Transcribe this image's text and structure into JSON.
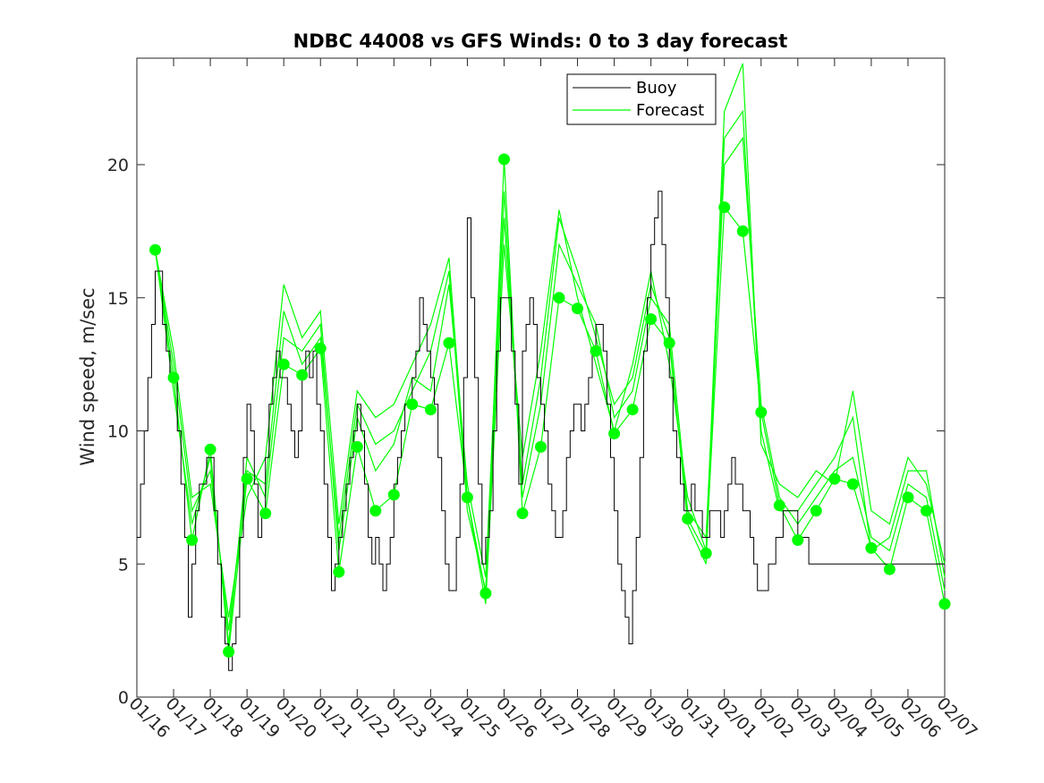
{
  "colors": {
    "buoy": "#000000",
    "forecast": "#00ff00",
    "background": "#ffffff",
    "axis": "#262626"
  },
  "chart_data": {
    "type": "line",
    "title": "NDBC 44008 vs GFS Winds: 0 to 3 day forecast",
    "xlabel": "",
    "ylabel": "Wind speed, m/sec",
    "xlim": [
      0,
      22
    ],
    "ylim": [
      0,
      24
    ],
    "x_tick_labels": [
      "01/16",
      "01/17",
      "01/18",
      "01/19",
      "01/20",
      "01/21",
      "01/22",
      "01/23",
      "01/24",
      "01/25",
      "01/26",
      "01/27",
      "01/28",
      "01/29",
      "01/30",
      "01/31",
      "02/01",
      "02/02",
      "02/03",
      "02/04",
      "02/05",
      "02/06",
      "02/07"
    ],
    "y_ticks": [
      0,
      5,
      10,
      15,
      20
    ],
    "legend": {
      "position": "top-right",
      "entries": [
        "Buoy",
        "Forecast"
      ]
    },
    "buoy": {
      "name": "Buoy",
      "x": [
        0,
        0.1,
        0.2,
        0.3,
        0.4,
        0.5,
        0.6,
        0.7,
        0.8,
        0.9,
        1.0,
        1.1,
        1.2,
        1.3,
        1.4,
        1.5,
        1.6,
        1.7,
        1.8,
        1.9,
        2.0,
        2.1,
        2.2,
        2.3,
        2.4,
        2.5,
        2.6,
        2.7,
        2.8,
        2.9,
        3.0,
        3.1,
        3.2,
        3.3,
        3.4,
        3.5,
        3.6,
        3.7,
        3.8,
        3.9,
        4.0,
        4.1,
        4.2,
        4.3,
        4.4,
        4.5,
        4.6,
        4.7,
        4.8,
        4.9,
        5.0,
        5.1,
        5.2,
        5.3,
        5.4,
        5.5,
        5.6,
        5.7,
        5.8,
        5.9,
        6.0,
        6.1,
        6.2,
        6.3,
        6.4,
        6.5,
        6.6,
        6.7,
        6.8,
        6.9,
        7.0,
        7.1,
        7.2,
        7.3,
        7.4,
        7.5,
        7.6,
        7.7,
        7.8,
        7.9,
        8.0,
        8.1,
        8.2,
        8.3,
        8.4,
        8.5,
        8.6,
        8.7,
        8.8,
        8.9,
        9.0,
        9.1,
        9.2,
        9.3,
        9.4,
        9.5,
        9.6,
        9.7,
        9.8,
        9.9,
        10.0,
        10.1,
        10.2,
        10.3,
        10.4,
        10.5,
        10.6,
        10.7,
        10.8,
        10.9,
        11.0,
        11.1,
        11.2,
        11.3,
        11.4,
        11.5,
        11.6,
        11.7,
        11.8,
        11.9,
        12.0,
        12.1,
        12.2,
        12.3,
        12.4,
        12.5,
        12.6,
        12.7,
        12.8,
        12.9,
        13.0,
        13.1,
        13.2,
        13.3,
        13.4,
        13.5,
        13.6,
        13.7,
        13.8,
        13.9,
        14.0,
        14.1,
        14.2,
        14.3,
        14.4,
        14.5,
        14.6,
        14.7,
        14.8,
        14.9,
        15.0,
        15.1,
        15.2,
        15.3,
        15.4,
        15.5,
        15.6,
        15.7,
        15.8,
        15.9,
        16.0,
        16.1,
        16.2,
        16.3,
        16.4,
        16.5,
        16.6,
        16.7,
        16.8,
        16.9,
        17.0,
        17.1,
        17.2,
        17.3,
        17.4,
        17.5,
        17.6,
        17.7,
        17.8,
        17.9,
        18.0,
        18.1,
        18.2,
        18.3,
        18.4,
        18.5,
        18.6,
        18.7,
        18.8,
        18.9,
        19.0,
        19.1,
        19.2,
        19.3,
        19.4,
        19.5,
        19.6,
        19.7,
        19.8,
        19.9,
        20.0,
        20.1,
        20.2,
        20.3,
        20.4,
        20.5,
        20.6,
        20.7,
        20.8,
        20.9,
        21.0,
        21.1,
        21.2,
        21.3,
        21.4,
        21.5,
        21.6,
        21.7,
        21.8,
        21.9,
        22.0
      ],
      "y": [
        6,
        8,
        10,
        12,
        14,
        16,
        16,
        14,
        13,
        12,
        12,
        10,
        8,
        6,
        3,
        5,
        7,
        8,
        8,
        9,
        9,
        7,
        5,
        3,
        2,
        1,
        2,
        3,
        6,
        9,
        11,
        10,
        8,
        6,
        7,
        9,
        11,
        12,
        13,
        12,
        12,
        11,
        10,
        9,
        10,
        12,
        13,
        12,
        13,
        11,
        10,
        8,
        6,
        4,
        5,
        6,
        7,
        8,
        9,
        10,
        11,
        10,
        8,
        6,
        5,
        6,
        5,
        4,
        5,
        6,
        8,
        9,
        10,
        11,
        11,
        12,
        13,
        15,
        14,
        13,
        12,
        11,
        9,
        7,
        5,
        4,
        4,
        6,
        8,
        12,
        18,
        15,
        12,
        8,
        5,
        6,
        7,
        10,
        13,
        15,
        15,
        15,
        13,
        11,
        8,
        13,
        14,
        15,
        14,
        12,
        11,
        10,
        8,
        7,
        6,
        6,
        7,
        9,
        10,
        11,
        11,
        10,
        11,
        12,
        13,
        14,
        14,
        13,
        11,
        9,
        7,
        5,
        4,
        3,
        2,
        4,
        6,
        9,
        13,
        15,
        17,
        18,
        19,
        17,
        15,
        12,
        10,
        9,
        8,
        7,
        7,
        8,
        7,
        7,
        6,
        6,
        7,
        7,
        7,
        6,
        7,
        8,
        9,
        8,
        8,
        7,
        7,
        6,
        5,
        4,
        4,
        4,
        5,
        5,
        6,
        6,
        7,
        7,
        7,
        7,
        6,
        6,
        6,
        5,
        5,
        5,
        5,
        5,
        5,
        5,
        5,
        5,
        5,
        5,
        5,
        5,
        5,
        5,
        5,
        5,
        5,
        5,
        5,
        5,
        5,
        5,
        5,
        5,
        5,
        5,
        5,
        5,
        5,
        5,
        5,
        5,
        5,
        5,
        5,
        5,
        5
      ]
    },
    "forecast_series": [
      {
        "name": "Forecast",
        "x": [
          0.5,
          1.0,
          1.5,
          2.0,
          2.5,
          3.0,
          3.5,
          4.0,
          4.5,
          5.0,
          5.5,
          6.0,
          6.5,
          7.0,
          7.5,
          8.0,
          8.5,
          9.0,
          9.5,
          10.0,
          10.5,
          11.0,
          11.5,
          12.0,
          12.5,
          13.0,
          13.5,
          14.0,
          14.5,
          15.0,
          15.5,
          16.0,
          16.5,
          17.0,
          17.5,
          18.0,
          18.5,
          19.0,
          19.5,
          20.0,
          20.5,
          21.0,
          21.5,
          22.0
        ],
        "y": [
          16.8,
          12.0,
          5.9,
          9.3,
          1.7,
          8.2,
          6.9,
          12.5,
          12.1,
          13.1,
          4.7,
          9.4,
          7.0,
          7.6,
          11.0,
          10.8,
          13.3,
          7.5,
          3.9,
          20.2,
          6.9,
          9.4,
          15.0,
          14.6,
          13.0,
          9.9,
          10.8,
          14.2,
          13.3,
          6.7,
          5.4,
          18.4,
          17.5,
          10.7,
          7.2,
          5.9,
          7.0,
          8.2,
          8.0,
          5.6,
          4.8,
          7.5,
          7.0,
          3.5
        ]
      },
      {
        "name": "Forecast",
        "x": [
          0.5,
          1.0,
          1.5,
          2.0,
          2.5,
          3.0,
          3.5,
          4.0,
          4.5,
          5.0,
          5.5,
          6.0,
          6.5,
          7.0,
          7.5,
          8.0,
          8.5,
          9.0,
          9.5,
          10.0,
          10.5,
          11.0,
          11.5,
          12.0,
          12.5,
          13.0,
          13.5,
          14.0,
          14.5,
          15.0,
          15.5,
          16.0,
          16.5,
          17.0,
          17.5,
          18.0,
          18.5,
          19.0,
          19.5,
          20.0,
          20.5,
          21.0,
          21.5,
          22.0
        ],
        "y": [
          16.8,
          11.5,
          6.5,
          9.0,
          2.0,
          9.0,
          7.5,
          13.5,
          13.0,
          14.0,
          5.5,
          10.5,
          8.5,
          9.5,
          12.0,
          11.5,
          15.5,
          8.0,
          4.5,
          19.0,
          7.5,
          11.0,
          17.0,
          15.5,
          14.0,
          10.5,
          11.5,
          15.0,
          14.0,
          7.0,
          6.0,
          20.0,
          21.0,
          11.0,
          7.5,
          6.5,
          7.5,
          8.5,
          9.0,
          6.0,
          5.5,
          8.0,
          7.5,
          4.0
        ]
      },
      {
        "name": "Forecast",
        "x": [
          0.5,
          1.0,
          1.5,
          2.0,
          2.5,
          3.0,
          3.5,
          4.0,
          4.5,
          5.0,
          5.5,
          6.0,
          6.5,
          7.0,
          7.5,
          8.0,
          8.5,
          9.0,
          9.5,
          10.0,
          10.5,
          11.0,
          11.5,
          12.0,
          12.5,
          13.0,
          13.5,
          14.0,
          14.5,
          15.0,
          15.5,
          16.0,
          16.5,
          17.0,
          17.5,
          18.0,
          18.5,
          19.0,
          19.5,
          20.0,
          20.5,
          21.0,
          21.5,
          22.0
        ],
        "y": [
          16.8,
          12.5,
          7.0,
          8.5,
          2.5,
          8.5,
          8.0,
          14.5,
          12.5,
          13.5,
          6.0,
          11.0,
          9.5,
          10.0,
          11.5,
          13.0,
          16.0,
          7.0,
          4.0,
          18.0,
          8.0,
          12.0,
          18.0,
          16.0,
          13.5,
          11.0,
          12.0,
          15.5,
          13.5,
          6.5,
          5.0,
          21.0,
          22.0,
          10.0,
          7.0,
          7.0,
          8.0,
          9.0,
          10.5,
          5.5,
          6.0,
          8.5,
          8.5,
          4.5
        ]
      },
      {
        "name": "Forecast",
        "x": [
          0.5,
          1.0,
          1.5,
          2.0,
          2.5,
          3.0,
          3.5,
          4.0,
          4.5,
          5.0,
          5.5,
          6.0,
          6.5,
          7.0,
          7.5,
          8.0,
          8.5,
          9.0,
          9.5,
          10.0,
          10.5,
          11.0,
          11.5,
          12.0,
          12.5,
          13.0,
          13.5,
          14.0,
          14.5,
          15.0,
          15.5,
          16.0,
          16.5,
          17.0,
          17.5,
          18.0,
          18.5,
          19.0,
          19.5,
          20.0,
          20.5,
          21.0,
          21.5,
          22.0
        ],
        "y": [
          16.8,
          13.0,
          7.5,
          8.0,
          3.0,
          7.5,
          9.0,
          15.5,
          13.5,
          14.5,
          6.5,
          11.5,
          10.5,
          11.0,
          12.5,
          14.0,
          16.5,
          7.5,
          3.5,
          17.0,
          9.0,
          13.0,
          18.3,
          15.0,
          12.5,
          10.0,
          12.5,
          16.0,
          12.5,
          7.5,
          5.5,
          22.0,
          23.8,
          9.5,
          8.0,
          7.5,
          8.5,
          8.0,
          11.5,
          7.0,
          6.5,
          9.0,
          8.0,
          5.0
        ]
      }
    ]
  }
}
